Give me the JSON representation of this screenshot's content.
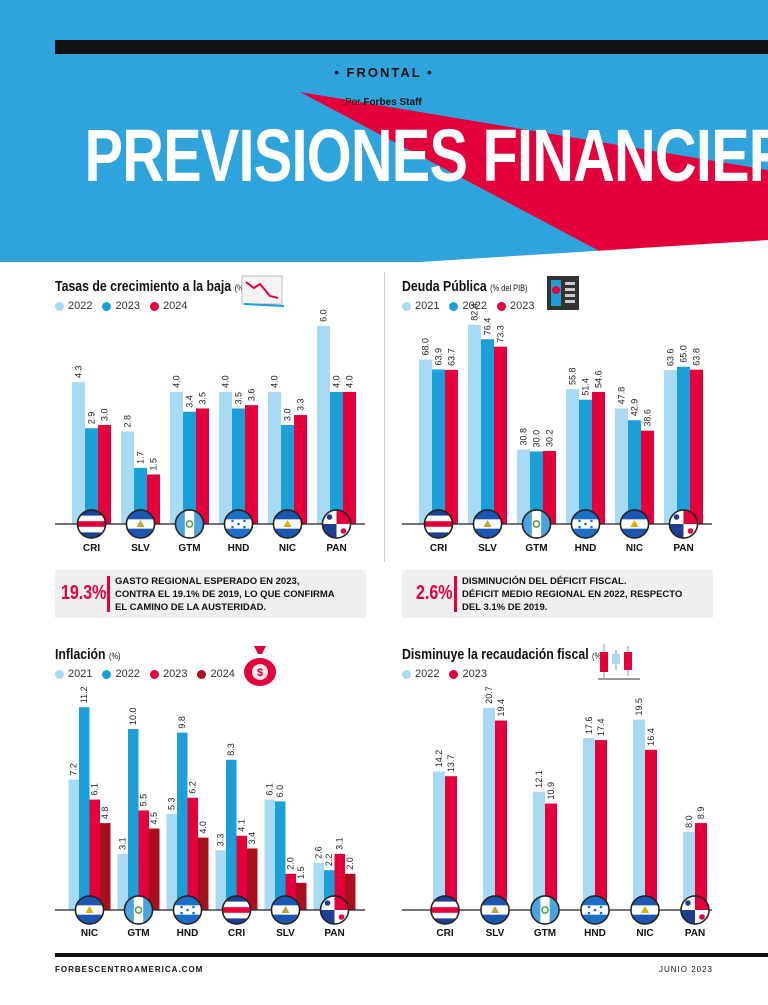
{
  "header": {
    "section": "FRONTAL",
    "byline_prefix": "Por",
    "byline_author": "Forbes Staff",
    "title": "PREVISIONES FINANCIERAS"
  },
  "colors": {
    "light": "#a8daf4",
    "mid": "#1c9fd8",
    "red": "#e4003a",
    "dark": "#a8101e",
    "hero_blue": "#2fa4dc"
  },
  "panels": {
    "crecimiento": {
      "title": "Tasas de crecimiento a la baja",
      "unit": "(%)",
      "icon": "line-chart-icon"
    },
    "deuda": {
      "title": "Deuda Pública",
      "unit": "(% del PIB)",
      "icon": "document-icon"
    },
    "inflacion": {
      "title": "Inflación",
      "unit": "(%)",
      "icon": "money-bag-icon"
    },
    "recaudacion": {
      "title": "Disminuye la recaudación fiscal",
      "unit": "(%)",
      "icon": "candlestick-icon"
    }
  },
  "callouts": {
    "left": {
      "value": "19.3%",
      "line1": "GASTO REGIONAL ESPERADO EN 2023,",
      "line2": "CONTRA EL 19.1% DE 2019, LO QUE CONFIRMA",
      "line3": "EL CAMINO DE LA AUSTERIDAD."
    },
    "right": {
      "value": "2.6%",
      "line1": "DISMINUCIÓN DEL DÉFICIT FISCAL.",
      "line2": "DÉFICIT MEDIO REGIONAL EN 2022, RESPECTO",
      "line3": "DEL 3.1% DE 2019."
    }
  },
  "chart_data": [
    {
      "id": "crecimiento",
      "type": "bar",
      "categories": [
        "CRI",
        "SLV",
        "GTM",
        "HND",
        "NIC",
        "PAN"
      ],
      "series": [
        {
          "name": "2022",
          "color": "#a8daf4",
          "values": [
            4.3,
            2.8,
            4.0,
            4.0,
            4.0,
            6.0
          ]
        },
        {
          "name": "2023",
          "color": "#1c9fd8",
          "values": [
            2.9,
            1.7,
            3.4,
            3.5,
            3.0,
            4.0
          ]
        },
        {
          "name": "2024",
          "color": "#e4003a",
          "values": [
            3.0,
            1.5,
            3.5,
            3.6,
            3.3,
            4.0
          ]
        }
      ],
      "labels": [
        [
          "4.3",
          "2.9",
          "3.0"
        ],
        [
          "2.8",
          "1.7",
          "1.5"
        ],
        [
          "4.0",
          "3.4",
          "3.5"
        ],
        [
          "4.0",
          "3.5",
          "3.6"
        ],
        [
          "4.0",
          "3.0",
          "3.3"
        ],
        [
          "6.0",
          "4.0",
          "4.0"
        ]
      ],
      "ymax": 6.3
    },
    {
      "id": "deuda",
      "type": "bar",
      "categories": [
        "CRI",
        "SLV",
        "GTM",
        "HND",
        "NIC",
        "PAN"
      ],
      "series": [
        {
          "name": "2021",
          "color": "#a8daf4",
          "values": [
            68.0,
            82.4,
            30.8,
            55.8,
            47.8,
            63.6
          ]
        },
        {
          "name": "2022",
          "color": "#1c9fd8",
          "values": [
            63.9,
            76.4,
            30.0,
            51.4,
            42.9,
            65.0
          ]
        },
        {
          "name": "2023",
          "color": "#e4003a",
          "values": [
            63.7,
            73.3,
            30.2,
            54.6,
            38.6,
            63.8
          ]
        }
      ],
      "labels": [
        [
          "68.0",
          "63.9",
          "63.7"
        ],
        [
          "82.4",
          "76.4",
          "73.3"
        ],
        [
          "30.8",
          "30.0",
          "30.2"
        ],
        [
          "55.8",
          "51.4",
          "54.6"
        ],
        [
          "47.8",
          "42.9",
          "38.6"
        ],
        [
          "63.6",
          "65.0",
          "63.8"
        ]
      ],
      "ymax": 86
    },
    {
      "id": "inflacion",
      "type": "bar",
      "categories": [
        "NIC",
        "GTM",
        "HND",
        "CRI",
        "SLV",
        "PAN"
      ],
      "series": [
        {
          "name": "2021",
          "color": "#a8daf4",
          "values": [
            7.2,
            3.1,
            5.3,
            3.3,
            6.1,
            2.6
          ]
        },
        {
          "name": "2022",
          "color": "#1c9fd8",
          "values": [
            11.2,
            10.0,
            9.8,
            8.3,
            6.0,
            2.2
          ]
        },
        {
          "name": "2023",
          "color": "#e4003a",
          "values": [
            6.1,
            5.5,
            6.2,
            4.1,
            2.0,
            3.1
          ]
        },
        {
          "name": "2024",
          "color": "#a8101e",
          "values": [
            4.8,
            4.5,
            4.0,
            3.4,
            1.5,
            2.0
          ]
        }
      ],
      "labels": [
        [
          "7.2",
          "11.2",
          "6.1",
          "4.8"
        ],
        [
          "3.1",
          "10.0",
          "5.5",
          "4.5"
        ],
        [
          "5.3",
          "9.8",
          "6.2",
          "4.0"
        ],
        [
          "3.3",
          "8.3",
          "4.1",
          "3.4"
        ],
        [
          "6.1",
          "6.0",
          "2.0",
          "1.5"
        ],
        [
          "2.6",
          "2.2",
          "3.1",
          "2.0"
        ]
      ],
      "ymax": 11.6
    },
    {
      "id": "recaudacion",
      "type": "bar",
      "categories": [
        "CRI",
        "SLV",
        "GTM",
        "HND",
        "NIC",
        "PAN"
      ],
      "series": [
        {
          "name": "2022",
          "color": "#a8daf4",
          "values": [
            14.2,
            20.7,
            12.1,
            17.6,
            19.5,
            8.0
          ]
        },
        {
          "name": "2023",
          "color": "#e4003a",
          "values": [
            13.7,
            19.4,
            10.9,
            17.4,
            16.4,
            8.9
          ]
        }
      ],
      "labels": [
        [
          "14.2",
          "13.7"
        ],
        [
          "20.7",
          "19.4"
        ],
        [
          "12.1",
          "10.9"
        ],
        [
          "17.6",
          "17.4"
        ],
        [
          "19.5",
          "16.4"
        ],
        [
          "8.0",
          "8.9"
        ]
      ],
      "ymax": 21.5
    }
  ],
  "footer": {
    "site": "FORBESCENTROAMERICA.COM",
    "date": "JUNIO 2023"
  }
}
